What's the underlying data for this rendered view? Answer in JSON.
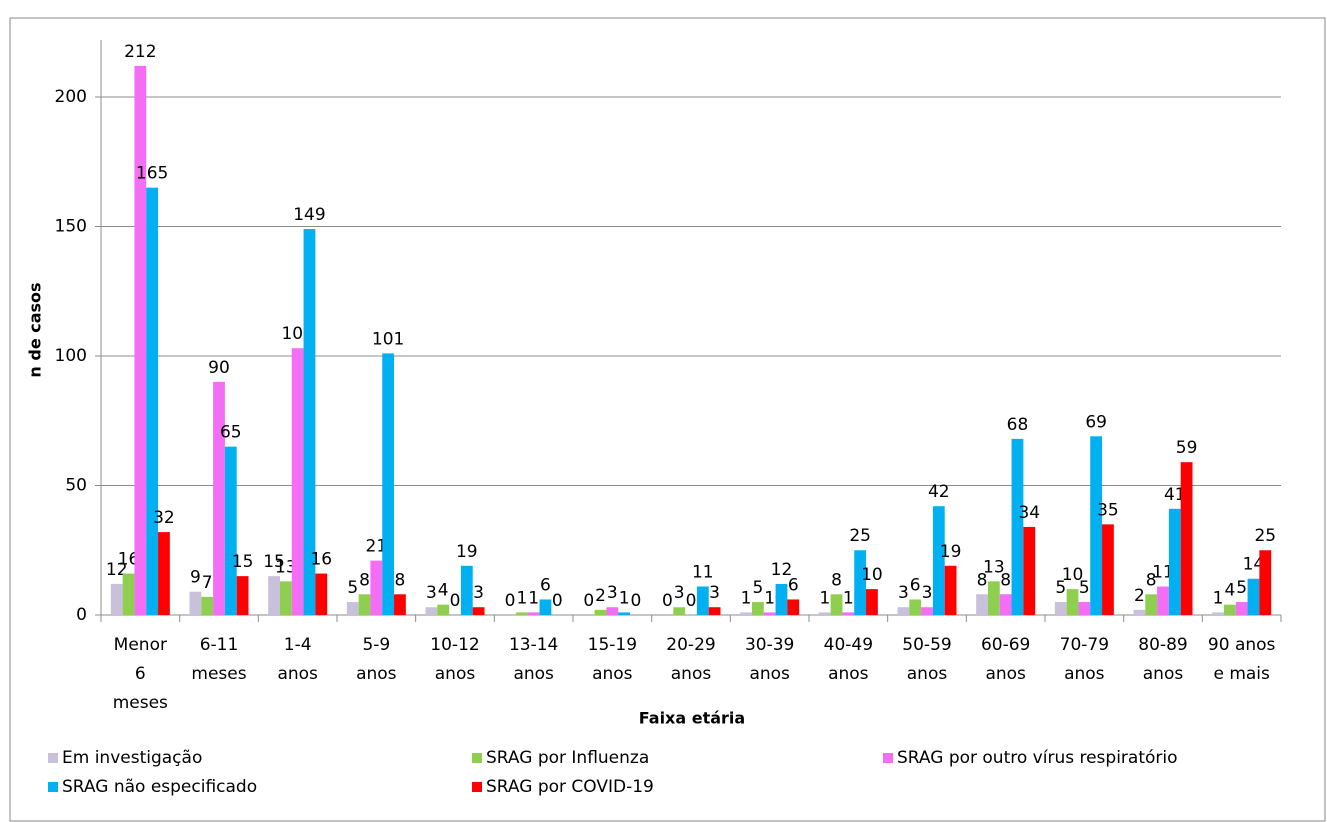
{
  "chart_data": {
    "type": "bar",
    "x_label": "Faixa etária",
    "y_label": "n de casos",
    "categories": [
      "Menor\n6\nmeses",
      "6-11\nmeses",
      "1-4\nanos",
      "5-9\nanos",
      "10-12\nanos",
      "13-14\nanos",
      "15-19\nanos",
      "20-29\nanos",
      "30-39\nanos",
      "40-49\nanos",
      "50-59\nanos",
      "60-69\nanos",
      "70-79\nanos",
      "80-89\nanos",
      "90 anos\ne mais"
    ],
    "series": [
      {
        "name": "Em investigação",
        "color": "#c9c0dc",
        "values": [
          12,
          9,
          15,
          5,
          3,
          0,
          0,
          0,
          1,
          1,
          3,
          8,
          5,
          2,
          1
        ]
      },
      {
        "name": "SRAG por Influenza",
        "color": "#8fcf4f",
        "values": [
          16,
          7,
          13,
          8,
          4,
          1,
          2,
          3,
          5,
          8,
          6,
          13,
          10,
          8,
          4
        ]
      },
      {
        "name": "SRAG por outro vírus respiratório",
        "color": "#f36ef5",
        "values": [
          212,
          90,
          103,
          21,
          0,
          1,
          3,
          0,
          1,
          1,
          3,
          8,
          5,
          11,
          5
        ]
      },
      {
        "name": "SRAG não especificado",
        "color": "#00b0f0",
        "values": [
          165,
          65,
          149,
          101,
          19,
          6,
          1,
          11,
          12,
          25,
          42,
          68,
          69,
          41,
          14
        ]
      },
      {
        "name": "SRAG por COVID-19",
        "color": "#ff0000",
        "values": [
          32,
          15,
          16,
          8,
          3,
          0,
          0,
          3,
          6,
          10,
          19,
          34,
          35,
          59,
          25
        ]
      }
    ],
    "ylim": [
      0,
      222
    ],
    "yticks": [
      0,
      50,
      100,
      150,
      200
    ],
    "grid": true,
    "legend": "bottom"
  }
}
